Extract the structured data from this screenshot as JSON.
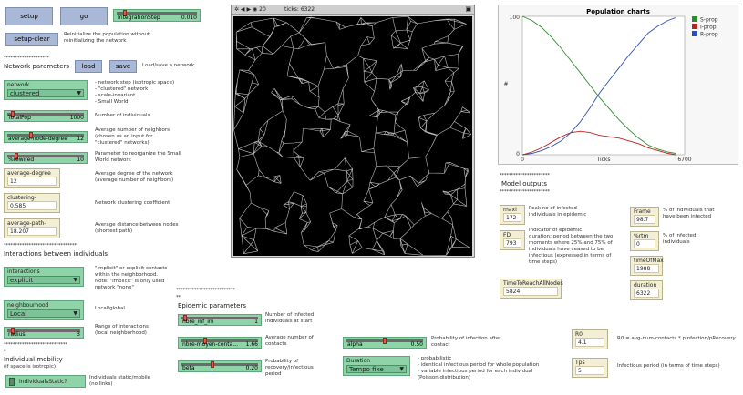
{
  "buttons": {
    "setup": "setup",
    "go": "go",
    "setup_clear": "setup-clear",
    "load": "load",
    "save": "save"
  },
  "notes": {
    "setup_clear": "Reinitialize the population without reinitializing the network",
    "load_save": "Load/save a network",
    "network": [
      "- network step (isotropic space)",
      "- \"clustered\" network",
      "- scale-invariant",
      "- Small World"
    ],
    "totalpop": "Number of individuals",
    "avg_node_degree": [
      "Average number of neighbors",
      "(chosen as an input for",
      "\"clustered\" networks)"
    ],
    "rewired": [
      "Parameter to reorganize the Small",
      "World network"
    ],
    "average_degree": [
      "Average degree of the network",
      "(average number of neighbors)"
    ],
    "clustering": "Network clustering coefficient",
    "path_length": [
      "Average distance between nodes",
      "(shortest path)"
    ],
    "interactions": [
      "\"Implicit\" or explicit contacts",
      "within the neighborhood.",
      "Note: \"implicit\" is only used",
      "network \"none\""
    ],
    "neighbourhood": "Local/global",
    "radius": [
      "Range of interactions",
      "(local neighborhood)"
    ],
    "mobility": [
      "Individuals static/mobile",
      "(no links)"
    ],
    "nbre_inf": [
      "Number of infected",
      "individuals at start"
    ],
    "contacts": [
      "Average number of",
      "contacts"
    ],
    "beta": [
      "Probability of",
      "recovery/infectious",
      "period"
    ],
    "alpha": [
      "Probability of infection after",
      "contact"
    ],
    "duration": [
      "- probabilistic",
      "- identical infectious period for whole population",
      "- variable infectious period for each individual",
      "(Poisson distribution)"
    ],
    "maxI": [
      "Peak no of infected",
      "individuals in epidemic"
    ],
    "fd": [
      "Indicator of epidemic",
      "duration: period between the two",
      "moments where 25% and 75% of",
      "individuals have ceased to be",
      "infectious (expressed in terms of",
      "time steps)"
    ],
    "frame": [
      "% of individuals that",
      "have been infected"
    ],
    "rtm": [
      "% of infected",
      "individuals"
    ],
    "r0_formula": "R0 = avg-num-contacts * pInfection/pRecovery",
    "tps": "Infectious period (in terms of time steps)"
  },
  "headings": {
    "stars1": "********************",
    "network_parameters": "Network parameters",
    "stars2": "********************************",
    "interactions": "Interactions between individuals",
    "stars3": "****************************",
    "star_single": "*",
    "mobility": [
      "Individual mobility",
      "(if space is isotropic)"
    ],
    "stars4": "**************************",
    "stars5": "**",
    "epidemic": "Epidemic parameters",
    "stars6": "**********************",
    "model_outputs": "Model outputs",
    "stars7": "**********************"
  },
  "sliders": {
    "integration_step": {
      "label": "IntegrationStep",
      "value": "0.010",
      "fraction": 0.08
    },
    "totalpop": {
      "label": "TotalPop",
      "value": "1000",
      "fraction": 0.05
    },
    "avg_node_degree": {
      "label": "average-node-degree",
      "value": "12",
      "fraction": 0.3
    },
    "rewired": {
      "label": "%rewired",
      "value": "10",
      "fraction": 0.1
    },
    "radius": {
      "label": "radius",
      "value": "3",
      "fraction": 0.05
    },
    "nbre_inf": {
      "label": "nbre_inf_ini",
      "value": "1",
      "fraction": 0.03
    },
    "contacts": {
      "label": "nbre-moyen-conta...",
      "value": "1.66",
      "fraction": 0.3
    },
    "beta": {
      "label": "beta",
      "value": "0.20",
      "fraction": 0.4
    },
    "alpha": {
      "label": "alpha",
      "value": "0.50",
      "fraction": 0.5
    }
  },
  "choosers": {
    "network": {
      "label": "network",
      "value": "clustered"
    },
    "interactions": {
      "label": "interactions",
      "value": "explicit"
    },
    "neighbourhood": {
      "label": "neighbourhood",
      "value": "Local"
    },
    "duration": {
      "label": "Duration",
      "value": "Tempo fixe"
    }
  },
  "switch": {
    "label": "individualsStatic?"
  },
  "monitors": {
    "average_degree": {
      "label": "average-degree",
      "value": "12"
    },
    "clustering": {
      "label": "clustering-coefficent",
      "value": "0.585"
    },
    "path_length": {
      "label": "average-path-length",
      "value": "18.207"
    },
    "maxI": {
      "label": "maxI",
      "value": "172"
    },
    "fd": {
      "label": "FD",
      "value": "793"
    },
    "time_to_reach": {
      "label": "TimeToReachAllNodes",
      "value": "5824"
    },
    "frame": {
      "label": "Frame",
      "value": "98.7"
    },
    "rtm": {
      "label": "%rtm",
      "value": "0"
    },
    "time_of_max": {
      "label": "timeOfMax",
      "value": "1988"
    },
    "duration": {
      "label": "duration",
      "value": "6322"
    },
    "r0": {
      "label": "R0",
      "value": "4.1"
    },
    "tps": {
      "label": "Tps virérnie",
      "value": "5"
    }
  },
  "view": {
    "title": "ticks: 6322"
  },
  "chart_data": {
    "type": "line",
    "title": "Population charts",
    "xlabel": "Ticks",
    "ylabel": "#",
    "xlim": [
      0,
      6700
    ],
    "ylim": [
      0,
      100
    ],
    "x_tick_labels": [
      "0",
      "6700"
    ],
    "y_tick_labels": [
      "0",
      "100"
    ],
    "legend_position": "top-right",
    "series": [
      {
        "name": "S-prop",
        "color": "#2e8b2e",
        "x": [
          0,
          400,
          800,
          1200,
          1600,
          2000,
          2400,
          2800,
          3200,
          3600,
          4000,
          4400,
          4800,
          5200,
          5600,
          6000,
          6322
        ],
        "y": [
          100,
          97,
          92,
          85,
          77,
          68,
          59,
          50,
          41,
          33,
          25,
          18,
          12,
          7,
          4,
          2,
          1
        ]
      },
      {
        "name": "I-prop",
        "color": "#c0201c",
        "x": [
          0,
          400,
          800,
          1200,
          1600,
          2000,
          2400,
          2800,
          3200,
          3600,
          4000,
          4400,
          4800,
          5200,
          5600,
          6000,
          6322
        ],
        "y": [
          0,
          2,
          5,
          9,
          13,
          16,
          17,
          16,
          14,
          13,
          12,
          10,
          8,
          5,
          3,
          1,
          0
        ]
      },
      {
        "name": "R-prop",
        "color": "#2a4fb0",
        "x": [
          0,
          400,
          800,
          1200,
          1600,
          2000,
          2400,
          2800,
          3200,
          3600,
          4000,
          4400,
          4800,
          5200,
          5600,
          6000,
          6322
        ],
        "y": [
          0,
          1,
          3,
          6,
          10,
          16,
          24,
          34,
          45,
          54,
          63,
          72,
          80,
          88,
          93,
          97,
          99
        ]
      }
    ]
  }
}
